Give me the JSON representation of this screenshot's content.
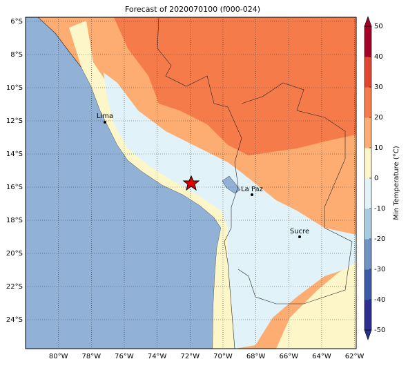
{
  "chart_data": {
    "type": "map",
    "title": "Forecast of 2020070100 (f000-024)",
    "xlim": [
      -82,
      -61.9
    ],
    "ylim": [
      -25.75,
      -5.75
    ],
    "xticks": [
      {
        "value": -80,
        "label": "80°W"
      },
      {
        "value": -78,
        "label": "78°W"
      },
      {
        "value": -76,
        "label": "76°W"
      },
      {
        "value": -74,
        "label": "74°W"
      },
      {
        "value": -72,
        "label": "72°W"
      },
      {
        "value": -70,
        "label": "70°W"
      },
      {
        "value": -68,
        "label": "68°W"
      },
      {
        "value": -66,
        "label": "66°W"
      },
      {
        "value": -64,
        "label": "64°W"
      },
      {
        "value": -62,
        "label": "62°W"
      }
    ],
    "yticks": [
      {
        "value": -6,
        "label": "6°S"
      },
      {
        "value": -8,
        "label": "8°S"
      },
      {
        "value": -10,
        "label": "10°S"
      },
      {
        "value": -12,
        "label": "12°S"
      },
      {
        "value": -14,
        "label": "14°S"
      },
      {
        "value": -16,
        "label": "16°S"
      },
      {
        "value": -18,
        "label": "18°S"
      },
      {
        "value": -20,
        "label": "20°S"
      },
      {
        "value": -22,
        "label": "22°S"
      },
      {
        "value": -24,
        "label": "24°S"
      }
    ],
    "grid": true,
    "cities": [
      "Lima",
      "La Paz",
      "Sucre"
    ],
    "colorbar": {
      "label": "Min Temperature (°C)",
      "lim": [
        -50,
        50
      ],
      "ticks": [
        -50,
        -40,
        -30,
        -20,
        -10,
        0,
        10,
        20,
        30,
        40,
        50
      ],
      "colors": [
        "#2c2f8f",
        "#3c5aa6",
        "#6d92c3",
        "#a7cce2",
        "#e1f3f8",
        "#fdf6c9",
        "#fdad72",
        "#f57c4a",
        "#e0452f",
        "#a50026"
      ]
    }
  }
}
